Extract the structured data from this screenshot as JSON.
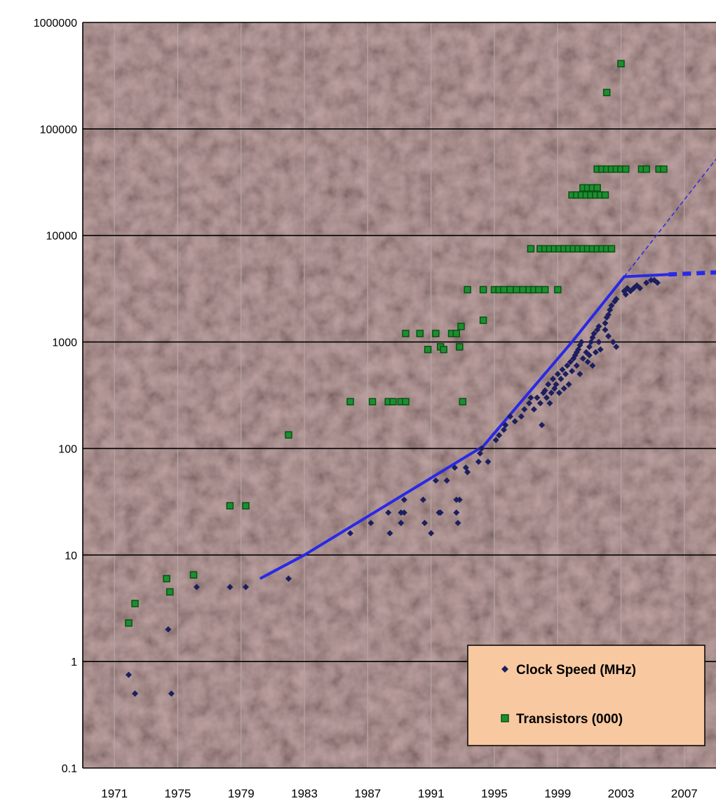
{
  "chart_data": {
    "type": "scatter",
    "title": "",
    "xlabel": "",
    "ylabel": "",
    "y_scale": "log",
    "xlim": [
      1969,
      2009
    ],
    "ylim": [
      0.1,
      1000000
    ],
    "x_ticks": [
      1971,
      1975,
      1979,
      1983,
      1987,
      1991,
      1995,
      1999,
      2003,
      2007
    ],
    "y_ticks": [
      0.1,
      1,
      10,
      100,
      1000,
      10000,
      100000,
      1000000
    ],
    "y_tick_labels": [
      "0.1",
      "1",
      "10",
      "100",
      "1000",
      "10000",
      "100000",
      "1000000"
    ],
    "grid": true,
    "legend_position": "bottom-right",
    "colors": {
      "plot_background": "#d9aaa8",
      "gridline_vertical": "#b5a5a5",
      "gridline_horizontal": "#000000",
      "clock_speed": "#1c1f5e",
      "transistors": "#1b8f2f",
      "transistor_edge": "#0c4f16",
      "trend": "#2929e6",
      "legend_background": "#f8c8a0"
    },
    "series": [
      {
        "name": "Clock Speed (MHz)",
        "marker": "diamond",
        "points": [
          [
            1971.9,
            0.75
          ],
          [
            1972.3,
            0.5
          ],
          [
            1974.4,
            2
          ],
          [
            1974.6,
            0.5
          ],
          [
            1976.2,
            5
          ],
          [
            1978.3,
            5
          ],
          [
            1979.3,
            5
          ],
          [
            1982.0,
            6
          ],
          [
            1985.9,
            16
          ],
          [
            1987.2,
            20
          ],
          [
            1988.3,
            25
          ],
          [
            1988.4,
            16
          ],
          [
            1989.1,
            20
          ],
          [
            1989.1,
            25
          ],
          [
            1989.3,
            33
          ],
          [
            1989.3,
            25
          ],
          [
            1990.5,
            33
          ],
          [
            1990.6,
            20
          ],
          [
            1991.0,
            16
          ],
          [
            1991.3,
            50
          ],
          [
            1991.5,
            25
          ],
          [
            1991.6,
            25
          ],
          [
            1992.0,
            50
          ],
          [
            1992.5,
            66
          ],
          [
            1992.6,
            33
          ],
          [
            1992.6,
            25
          ],
          [
            1992.7,
            20
          ],
          [
            1992.8,
            33
          ],
          [
            1993.2,
            66
          ],
          [
            1993.3,
            60
          ],
          [
            1994.0,
            75
          ],
          [
            1994.1,
            90
          ],
          [
            1994.2,
            100
          ],
          [
            1994.6,
            75
          ],
          [
            1995.1,
            120
          ],
          [
            1995.3,
            133
          ],
          [
            1995.6,
            150
          ],
          [
            1995.7,
            166
          ],
          [
            1996.0,
            200
          ],
          [
            1996.3,
            180
          ],
          [
            1996.7,
            200
          ],
          [
            1996.9,
            233
          ],
          [
            1997.2,
            266
          ],
          [
            1997.3,
            300
          ],
          [
            1997.5,
            233
          ],
          [
            1997.7,
            300
          ],
          [
            1997.9,
            266
          ],
          [
            1998.0,
            166
          ],
          [
            1998.1,
            333
          ],
          [
            1998.2,
            350
          ],
          [
            1998.3,
            300
          ],
          [
            1998.4,
            400
          ],
          [
            1998.5,
            266
          ],
          [
            1998.6,
            333
          ],
          [
            1998.7,
            450
          ],
          [
            1998.8,
            366
          ],
          [
            1998.9,
            400
          ],
          [
            1999.0,
            500
          ],
          [
            1999.1,
            333
          ],
          [
            1999.2,
            450
          ],
          [
            1999.3,
            550
          ],
          [
            1999.4,
            366
          ],
          [
            1999.5,
            500
          ],
          [
            1999.6,
            600
          ],
          [
            1999.7,
            400
          ],
          [
            1999.8,
            650
          ],
          [
            1999.9,
            533
          ],
          [
            2000.0,
            700
          ],
          [
            2000.1,
            750
          ],
          [
            2000.2,
            800
          ],
          [
            2000.3,
            850
          ],
          [
            2000.4,
            933
          ],
          [
            2000.5,
            1000
          ],
          [
            2000.2,
            600
          ],
          [
            2000.4,
            500
          ],
          [
            2000.6,
            700
          ],
          [
            2000.8,
            800
          ],
          [
            2000.9,
            650
          ],
          [
            2001.0,
            900
          ],
          [
            2001.1,
            1000
          ],
          [
            2001.2,
            1100
          ],
          [
            2001.3,
            1200
          ],
          [
            2001.5,
            1300
          ],
          [
            2001.6,
            1400
          ],
          [
            2001.0,
            750
          ],
          [
            2001.2,
            600
          ],
          [
            2001.4,
            800
          ],
          [
            2001.6,
            1000
          ],
          [
            2001.7,
            850
          ],
          [
            2002.0,
            1500
          ],
          [
            2002.1,
            1700
          ],
          [
            2002.2,
            1800
          ],
          [
            2002.3,
            2000
          ],
          [
            2002.4,
            2200
          ],
          [
            2002.6,
            2400
          ],
          [
            2002.7,
            2530
          ],
          [
            2002.0,
            1300
          ],
          [
            2002.2,
            1133
          ],
          [
            2002.5,
            1000
          ],
          [
            2002.7,
            900
          ],
          [
            2003.2,
            3000
          ],
          [
            2003.3,
            2800
          ],
          [
            2003.4,
            3200
          ],
          [
            2003.6,
            3000
          ],
          [
            2003.8,
            3200
          ],
          [
            2004.0,
            3400
          ],
          [
            2004.2,
            3200
          ],
          [
            2004.6,
            3600
          ],
          [
            2004.9,
            3800
          ],
          [
            2005.1,
            3800
          ],
          [
            2005.3,
            3600
          ]
        ]
      },
      {
        "name": "Transistors (000)",
        "marker": "square",
        "points": [
          [
            1971.9,
            2.3
          ],
          [
            1972.3,
            3.5
          ],
          [
            1974.3,
            6
          ],
          [
            1974.5,
            4.5
          ],
          [
            1976.0,
            6.5
          ],
          [
            1978.3,
            29
          ],
          [
            1979.3,
            29
          ],
          [
            1982.0,
            134
          ],
          [
            1985.9,
            275
          ],
          [
            1987.3,
            275
          ],
          [
            1988.3,
            275
          ],
          [
            1988.6,
            275
          ],
          [
            1989.1,
            275
          ],
          [
            1989.4,
            275
          ],
          [
            1989.4,
            1200
          ],
          [
            1990.3,
            1200
          ],
          [
            1990.8,
            850
          ],
          [
            1991.3,
            1200
          ],
          [
            1991.6,
            900
          ],
          [
            1991.8,
            850
          ],
          [
            1992.3,
            1200
          ],
          [
            1992.6,
            1200
          ],
          [
            1992.8,
            900
          ],
          [
            1992.9,
            1400
          ],
          [
            1993.0,
            275
          ],
          [
            1993.3,
            3100
          ],
          [
            1994.3,
            3100
          ],
          [
            1994.3,
            1600
          ],
          [
            1995.0,
            3100
          ],
          [
            1995.3,
            3100
          ],
          [
            1995.6,
            3100
          ],
          [
            1996.0,
            3100
          ],
          [
            1996.4,
            3100
          ],
          [
            1996.8,
            3100
          ],
          [
            1997.2,
            3100
          ],
          [
            1997.5,
            3100
          ],
          [
            1997.8,
            3100
          ],
          [
            1998.2,
            3100
          ],
          [
            1999.0,
            3100
          ],
          [
            1997.3,
            7500
          ],
          [
            1997.9,
            7500
          ],
          [
            1998.2,
            7500
          ],
          [
            1998.5,
            7500
          ],
          [
            1998.8,
            7500
          ],
          [
            1999.1,
            7500
          ],
          [
            1999.4,
            7500
          ],
          [
            1999.7,
            7500
          ],
          [
            2000.0,
            7500
          ],
          [
            2000.3,
            7500
          ],
          [
            2000.6,
            7500
          ],
          [
            2000.9,
            7500
          ],
          [
            2001.2,
            7500
          ],
          [
            2001.5,
            7500
          ],
          [
            2001.8,
            7500
          ],
          [
            2002.1,
            7500
          ],
          [
            2002.4,
            7500
          ],
          [
            1999.9,
            24000
          ],
          [
            2000.2,
            24000
          ],
          [
            2000.5,
            24000
          ],
          [
            2000.8,
            24000
          ],
          [
            2001.1,
            24000
          ],
          [
            2001.4,
            24000
          ],
          [
            2001.7,
            24000
          ],
          [
            2002.0,
            24000
          ],
          [
            2000.6,
            28000
          ],
          [
            2000.9,
            28000
          ],
          [
            2001.2,
            28000
          ],
          [
            2001.5,
            28000
          ],
          [
            2001.5,
            42000
          ],
          [
            2001.8,
            42000
          ],
          [
            2002.1,
            42000
          ],
          [
            2002.4,
            42000
          ],
          [
            2002.7,
            42000
          ],
          [
            2003.0,
            42000
          ],
          [
            2003.3,
            42000
          ],
          [
            2004.3,
            42000
          ],
          [
            2004.6,
            42000
          ],
          [
            2005.4,
            42000
          ],
          [
            2005.7,
            42000
          ],
          [
            2002.1,
            220000
          ],
          [
            2003.0,
            410000
          ]
        ]
      }
    ],
    "trend_line": [
      [
        1980.2,
        6
      ],
      [
        1983.0,
        10
      ],
      [
        1994.3,
        105
      ],
      [
        1999.9,
        1000
      ],
      [
        2003.2,
        4100
      ],
      [
        2006.0,
        4300
      ]
    ],
    "trend_line_projected": [
      [
        2006.0,
        4300
      ],
      [
        2009.0,
        4500
      ]
    ],
    "trend_extrapolation": [
      [
        2003.2,
        4100
      ],
      [
        2009.0,
        52000
      ]
    ],
    "legend": [
      {
        "label": "Clock Speed (MHz)",
        "marker": "diamond"
      },
      {
        "label": "Transistors (000)",
        "marker": "square"
      }
    ]
  }
}
